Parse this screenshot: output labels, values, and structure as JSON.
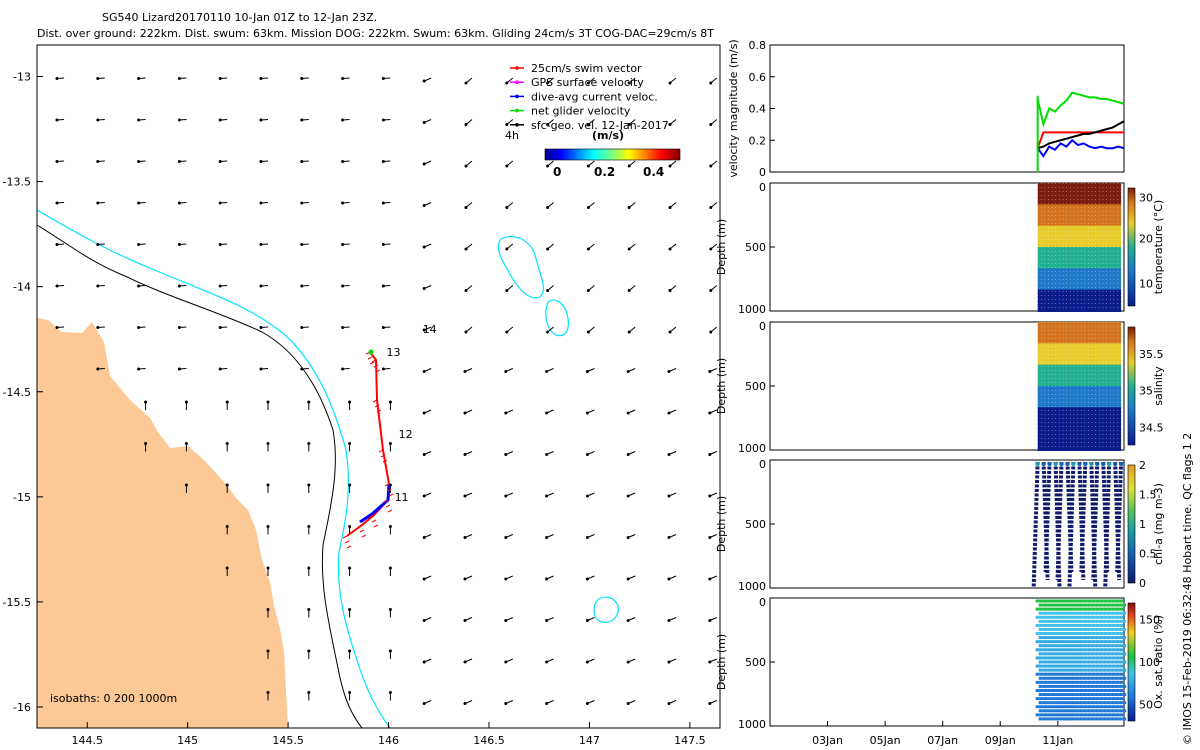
{
  "map": {
    "title_line1": "SG540 Lizard20170110 10-Jan 01Z to 12-Jan 23Z.",
    "title_line2": "Dist. over ground: 222km. Dist. swum: 63km. Mission DOG: 222km. Swum: 63km. Gliding 24cm/s 3T COG-DAC=29cm/s 8T",
    "lon_ticks": [
      "144.5",
      "145",
      "145.5",
      "146",
      "146.5",
      "147",
      "147.5"
    ],
    "lat_ticks": [
      "-13",
      "-13.5",
      "-14",
      "-14.5",
      "-15",
      "-15.5",
      "-16"
    ],
    "xlim": [
      144.25,
      147.65
    ],
    "ylim": [
      -16.1,
      -12.85
    ],
    "legend": [
      {
        "label": "25cm/s swim vector",
        "color": "#ff0000"
      },
      {
        "label": "GPS surface velocity",
        "color": "#ff00ff"
      },
      {
        "label": "dive-avg current veloc.",
        "color": "#0000ff"
      },
      {
        "label": "net glider velocity",
        "color": "#00dd00"
      },
      {
        "label": "sfc-geo. vel. 12-Jan-2017",
        "color": "#000000"
      }
    ],
    "legend_time": "4h",
    "colorbar_label": "(m/s)",
    "colorbar_ticks": [
      "0",
      "0.2",
      "0.4"
    ],
    "isobath_label": "isobaths: 0   200  1000m",
    "day_labels": [
      {
        "label": "13",
        "lon": 145.99,
        "lat": -14.33
      },
      {
        "label": "12",
        "lon": 146.05,
        "lat": -14.72
      },
      {
        "label": "11",
        "lon": 146.03,
        "lat": -15.02
      },
      {
        "label": "14",
        "lon": 146.17,
        "lat": -14.22
      }
    ],
    "colors": {
      "land": "#fbc896",
      "isobath200": "#000000",
      "isobath1000": "#00e5ff"
    }
  },
  "panels": {
    "velocity": {
      "ylabel": "velocity magnitude (m/s)",
      "ticks": [
        "0",
        "0.2",
        "0.4",
        "0.6",
        "0.8"
      ],
      "ylim": [
        0,
        0.8
      ]
    },
    "temperature": {
      "ylabel": "Depth (m)",
      "cbar_label": "temperature (°C)",
      "cbar_ticks": [
        "10",
        "20",
        "30"
      ],
      "y_ticks": [
        "0",
        "500",
        "1000"
      ]
    },
    "salinity": {
      "ylabel": "Depth (m)",
      "cbar_label": "salinity",
      "cbar_ticks": [
        "34.5",
        "35",
        "35.5"
      ],
      "y_ticks": [
        "0",
        "500",
        "1000"
      ]
    },
    "chla": {
      "ylabel": "Depth (m)",
      "cbar_label": "chl-a (mg m-3)",
      "cbar_ticks": [
        "0",
        "0.5",
        "1",
        "1.5",
        "2"
      ],
      "y_ticks": [
        "0",
        "500",
        "1000"
      ]
    },
    "oxygen": {
      "ylabel": "Depth (m)",
      "cbar_label": "Ox. sat. ratio (%)",
      "cbar_ticks": [
        "50",
        "100",
        "150"
      ],
      "y_ticks": [
        "0",
        "500",
        "1000"
      ]
    },
    "time_ticks": [
      "03Jan",
      "05Jan",
      "07Jan",
      "09Jan",
      "11Jan"
    ]
  },
  "footer": "© IMOS 15-Feb-2019 06:32:48 Hobart time. QC flags 1  2",
  "chart_data": [
    {
      "type": "line",
      "title": "velocity magnitude",
      "ylabel": "velocity magnitude (m/s)",
      "ylim": [
        0,
        0.8
      ],
      "x_days": [
        10.0,
        10.2,
        10.4,
        10.6,
        10.8,
        11.0,
        11.2,
        11.4,
        11.6,
        11.8,
        12.0,
        12.2,
        12.4,
        12.6,
        12.8,
        13.0
      ],
      "series": [
        {
          "name": "25cm/s swim vector",
          "color": "#ff0000",
          "values": [
            0.15,
            0.25,
            0.25,
            0.25,
            0.25,
            0.25,
            0.25,
            0.25,
            0.25,
            0.25,
            0.25,
            0.25,
            0.25,
            0.25,
            0.25,
            0.25
          ]
        },
        {
          "name": "net glider velocity",
          "color": "#00dd00",
          "values": [
            0.46,
            0.3,
            0.4,
            0.38,
            0.42,
            0.45,
            0.5,
            0.49,
            0.48,
            0.47,
            0.47,
            0.46,
            0.46,
            0.45,
            0.44,
            0.43
          ]
        },
        {
          "name": "dive-avg current veloc.",
          "color": "#0000ff",
          "values": [
            0.15,
            0.1,
            0.16,
            0.14,
            0.18,
            0.16,
            0.2,
            0.17,
            0.18,
            0.16,
            0.15,
            0.16,
            0.15,
            0.15,
            0.16,
            0.15
          ]
        },
        {
          "name": "sfc-geo. vel. 12-Jan-2017",
          "color": "#000000",
          "values": [
            0.15,
            0.16,
            0.18,
            0.19,
            0.2,
            0.21,
            0.22,
            0.23,
            0.24,
            0.24,
            0.25,
            0.26,
            0.27,
            0.28,
            0.3,
            0.32
          ]
        }
      ]
    },
    {
      "type": "scatter",
      "title": "temperature",
      "ylabel": "Depth (m)",
      "ylim": [
        1000,
        0
      ],
      "clim": [
        5,
        32
      ]
    },
    {
      "type": "scatter",
      "title": "salinity",
      "ylabel": "Depth (m)",
      "ylim": [
        1000,
        0
      ],
      "clim": [
        34.3,
        35.9
      ]
    },
    {
      "type": "scatter",
      "title": "chl-a",
      "ylabel": "Depth (m)",
      "ylim": [
        1000,
        0
      ],
      "clim": [
        0,
        2
      ]
    },
    {
      "type": "scatter",
      "title": "oxygen saturation",
      "ylabel": "Depth (m)",
      "ylim": [
        1000,
        0
      ],
      "clim": [
        30,
        170
      ]
    }
  ]
}
